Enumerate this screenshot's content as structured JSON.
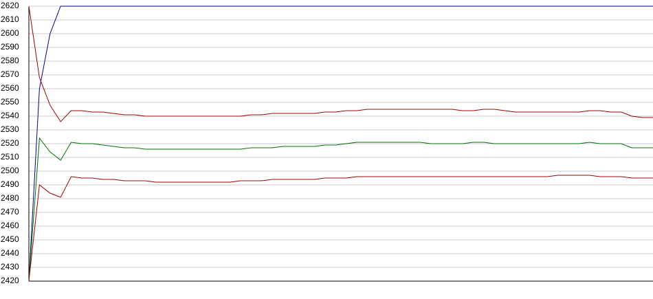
{
  "chart_data": {
    "type": "line",
    "categories": [
      null,
      null,
      null,
      null,
      null,
      null,
      null,
      null,
      null,
      null,
      null,
      null,
      null,
      null,
      null,
      null,
      null,
      null,
      null,
      null,
      null,
      null,
      null,
      null,
      null,
      null,
      null,
      null,
      null,
      null,
      null,
      null,
      null,
      null,
      null,
      null,
      null,
      null,
      null,
      null,
      null,
      null,
      null,
      null,
      null,
      null,
      null,
      null,
      null,
      null,
      null,
      null,
      null,
      null,
      null,
      null,
      null,
      null,
      null,
      null
    ],
    "series": [
      {
        "color": "#000080",
        "values": [
          2420,
          2560,
          2600,
          2620,
          2620,
          2620,
          2620,
          2620,
          2620,
          2620,
          2620,
          2620,
          2620,
          2620,
          2620,
          2620,
          2620,
          2620,
          2620,
          2620,
          2620,
          2620,
          2620,
          2620,
          2620,
          2620,
          2620,
          2620,
          2620,
          2620,
          2620,
          2620,
          2620,
          2620,
          2620,
          2620,
          2620,
          2620,
          2620,
          2620,
          2620,
          2620,
          2620,
          2620,
          2620,
          2620,
          2620,
          2620,
          2620,
          2620,
          2620,
          2620,
          2620,
          2620,
          2620,
          2620,
          2620,
          2620,
          2620,
          2620
        ]
      },
      {
        "color": "#a00000",
        "values": [
          2620,
          2568,
          2548,
          2536,
          2544,
          2544,
          2543,
          2543,
          2542,
          2541,
          2541,
          2540,
          2540,
          2540,
          2540,
          2540,
          2540,
          2540,
          2540,
          2540,
          2540,
          2541,
          2541,
          2542,
          2542,
          2542,
          2542,
          2542,
          2543,
          2543,
          2544,
          2544,
          2545,
          2545,
          2545,
          2545,
          2545,
          2545,
          2545,
          2545,
          2545,
          2544,
          2544,
          2545,
          2545,
          2544,
          2543,
          2543,
          2543,
          2543,
          2543,
          2543,
          2543,
          2544,
          2544,
          2543,
          2543,
          2540,
          2539,
          2539
        ]
      },
      {
        "color": "#007000",
        "values": [
          2420,
          2524,
          2514,
          2508,
          2521,
          2520,
          2520,
          2519,
          2518,
          2517,
          2517,
          2516,
          2516,
          2516,
          2516,
          2516,
          2516,
          2516,
          2516,
          2516,
          2516,
          2517,
          2517,
          2517,
          2518,
          2518,
          2518,
          2518,
          2519,
          2519,
          2520,
          2521,
          2521,
          2521,
          2521,
          2521,
          2521,
          2521,
          2520,
          2520,
          2520,
          2520,
          2521,
          2521,
          2520,
          2520,
          2520,
          2520,
          2520,
          2520,
          2520,
          2520,
          2520,
          2521,
          2520,
          2520,
          2520,
          2517,
          2517,
          2517
        ]
      },
      {
        "color": "#a00000",
        "values": [
          2420,
          2490,
          2484,
          2481,
          2496,
          2495,
          2495,
          2494,
          2494,
          2493,
          2493,
          2493,
          2492,
          2492,
          2492,
          2492,
          2492,
          2492,
          2492,
          2492,
          2493,
          2493,
          2493,
          2494,
          2494,
          2494,
          2494,
          2494,
          2495,
          2495,
          2495,
          2496,
          2496,
          2496,
          2496,
          2496,
          2496,
          2496,
          2496,
          2496,
          2496,
          2496,
          2496,
          2496,
          2496,
          2496,
          2496,
          2496,
          2496,
          2496,
          2497,
          2497,
          2497,
          2497,
          2496,
          2496,
          2496,
          2495,
          2495,
          2495
        ]
      }
    ],
    "ylim": [
      2420,
      2620
    ],
    "yticks": [
      2420,
      2430,
      2440,
      2450,
      2460,
      2470,
      2480,
      2490,
      2500,
      2510,
      2520,
      2530,
      2540,
      2550,
      2560,
      2570,
      2580,
      2590,
      2600,
      2610,
      2620
    ],
    "grid": true
  }
}
